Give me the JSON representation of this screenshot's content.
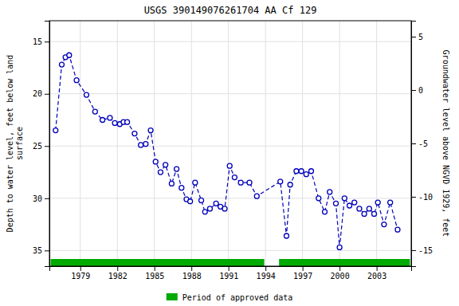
{
  "chart_data": {
    "type": "line",
    "title": "USGS 390149076261704 AA Cf 129",
    "ylabel": "Depth to water level, feet below land\nsurface",
    "y2label": "Groundwater level above NGVD 1929, feet",
    "ylim": [
      36.5,
      13.0
    ],
    "yticks": [
      15,
      20,
      25,
      30,
      35
    ],
    "y2lim": [
      -16.5,
      6.5
    ],
    "y2ticks": [
      5,
      0,
      -5,
      -10,
      -15
    ],
    "xlim": [
      1976.5,
      2005.8
    ],
    "xticks": [
      1979,
      1982,
      1985,
      1988,
      1991,
      1994,
      1997,
      2000,
      2003
    ],
    "grid": true,
    "legend": "bottom",
    "x": [
      1977.0,
      1977.5,
      1977.8,
      1978.1,
      1978.7,
      1979.5,
      1980.2,
      1980.8,
      1981.4,
      1981.8,
      1982.2,
      1982.5,
      1982.8,
      1983.4,
      1983.9,
      1984.3,
      1984.7,
      1985.1,
      1985.5,
      1985.9,
      1986.4,
      1986.8,
      1987.2,
      1987.6,
      1987.9,
      1988.3,
      1988.8,
      1989.1,
      1989.5,
      1990.0,
      1990.35,
      1990.7,
      1991.1,
      1991.5,
      1992.0,
      1992.7,
      1993.3,
      1995.2,
      1995.7,
      1996.0,
      1996.5,
      1996.9,
      1997.3,
      1997.7,
      1998.3,
      1998.8,
      1999.2,
      1999.7,
      2000.0,
      2000.4,
      2000.8,
      2001.2,
      2001.6,
      2002.0,
      2002.4,
      2002.8,
      2003.1,
      2003.6,
      2004.1,
      2004.7
    ],
    "series": [
      {
        "color": "#0000bb",
        "line_style": "dashed",
        "marker": "circle",
        "values": [
          23.5,
          17.2,
          16.5,
          16.3,
          18.7,
          20.1,
          21.7,
          22.5,
          22.3,
          22.8,
          22.9,
          22.7,
          22.7,
          23.8,
          24.9,
          24.8,
          23.5,
          26.5,
          27.5,
          26.8,
          28.6,
          27.2,
          29.0,
          30.1,
          30.3,
          28.5,
          30.2,
          31.3,
          31.0,
          30.5,
          30.8,
          31.0,
          26.9,
          28.0,
          28.5,
          28.5,
          29.8,
          28.4,
          33.6,
          28.7,
          27.4,
          27.4,
          27.7,
          27.4,
          30.0,
          31.3,
          29.4,
          30.5,
          34.7,
          30.0,
          30.7,
          30.4,
          31.0,
          31.5,
          31.0,
          31.5,
          30.4,
          32.5,
          30.4,
          33.0
        ]
      }
    ],
    "approved_periods": {
      "name": "Period of approved data",
      "color": "#00aa00",
      "ranges": [
        [
          1976.6,
          1993.9
        ],
        [
          1995.1,
          2005.7
        ]
      ]
    }
  }
}
